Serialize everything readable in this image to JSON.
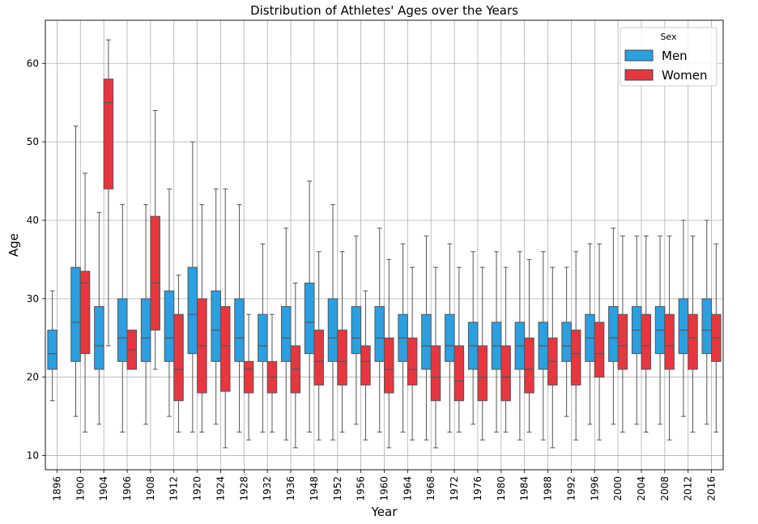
{
  "chart_data": {
    "type": "boxplot",
    "title": "Distribution of Athletes' Ages over the Years",
    "xlabel": "Year",
    "ylabel": "Age",
    "ylim": [
      8.2,
      65.5
    ],
    "yticks": [
      10,
      20,
      30,
      40,
      50,
      60
    ],
    "grid": true,
    "legend": {
      "title": "Sex",
      "placement": "top-right"
    },
    "colors": {
      "Men": "#2b9fe0",
      "Women": "#e8363f"
    },
    "categories": [
      "1896",
      "1900",
      "1904",
      "1906",
      "1908",
      "1912",
      "1920",
      "1924",
      "1928",
      "1932",
      "1936",
      "1948",
      "1952",
      "1956",
      "1960",
      "1964",
      "1968",
      "1972",
      "1976",
      "1980",
      "1984",
      "1988",
      "1992",
      "1996",
      "2000",
      "2004",
      "2008",
      "2012",
      "2016"
    ],
    "series": [
      {
        "name": "Men",
        "boxes": [
          [
            17,
            21,
            23,
            26,
            31
          ],
          [
            15,
            22,
            27,
            34,
            52
          ],
          [
            14,
            21,
            24,
            29,
            41
          ],
          [
            13,
            22,
            25,
            30,
            42
          ],
          [
            14,
            22,
            25,
            30,
            42
          ],
          [
            15,
            22,
            25,
            31,
            44
          ],
          [
            13,
            23,
            28,
            34,
            50
          ],
          [
            14,
            22,
            26,
            31,
            44
          ],
          [
            13,
            22,
            25,
            30,
            42
          ],
          [
            13,
            22,
            24,
            28,
            37
          ],
          [
            12,
            22,
            25,
            29,
            39
          ],
          [
            13,
            23,
            27,
            32,
            45
          ],
          [
            12,
            22,
            25,
            30,
            42
          ],
          [
            14,
            23,
            25,
            29,
            38
          ],
          [
            13,
            22,
            25,
            29,
            39
          ],
          [
            13,
            22,
            25,
            28,
            37
          ],
          [
            12,
            21,
            24,
            28,
            38
          ],
          [
            13,
            22,
            24,
            28,
            37
          ],
          [
            14,
            21,
            24,
            27,
            36
          ],
          [
            13,
            21,
            24,
            27,
            36
          ],
          [
            12,
            21,
            24,
            27,
            36
          ],
          [
            12,
            21,
            24,
            27,
            36
          ],
          [
            15,
            22,
            24,
            27,
            34
          ],
          [
            14,
            22,
            25,
            28,
            37
          ],
          [
            14,
            22,
            25,
            29,
            39
          ],
          [
            14,
            23,
            26,
            29,
            38
          ],
          [
            14,
            23,
            26,
            29,
            38
          ],
          [
            15,
            23,
            26,
            30,
            40
          ],
          [
            14,
            23,
            26,
            30,
            40
          ]
        ]
      },
      {
        "name": "Women",
        "boxes": [
          null,
          [
            13,
            23,
            32,
            33.5,
            46
          ],
          [
            24,
            44,
            55,
            58,
            63
          ],
          [
            21,
            21,
            23.5,
            26,
            26
          ],
          [
            21,
            26,
            32,
            40.5,
            54
          ],
          [
            13,
            17,
            21,
            28,
            33
          ],
          [
            13,
            18,
            24,
            30,
            42
          ],
          [
            11,
            18.2,
            24,
            29,
            44
          ],
          [
            12,
            18,
            21,
            22,
            28
          ],
          [
            13,
            18,
            20,
            22,
            28
          ],
          [
            11,
            18,
            21,
            24,
            32
          ],
          [
            12,
            19,
            22,
            26,
            36
          ],
          [
            13,
            19,
            22,
            26,
            36
          ],
          [
            12,
            19,
            22,
            24,
            31
          ],
          [
            11,
            18,
            21,
            25,
            35
          ],
          [
            12,
            19,
            21,
            25,
            34
          ],
          [
            11,
            17,
            20,
            24,
            34
          ],
          [
            13,
            17,
            19.5,
            24,
            34
          ],
          [
            12,
            17,
            20,
            24,
            34
          ],
          [
            13,
            17,
            20,
            24,
            34
          ],
          [
            13,
            18,
            21,
            25,
            35
          ],
          [
            11,
            19,
            22,
            25,
            34
          ],
          [
            12,
            19,
            23,
            26,
            36
          ],
          [
            12,
            20,
            23,
            27,
            37
          ],
          [
            13,
            21,
            24,
            28,
            38
          ],
          [
            13,
            21,
            24,
            28,
            38
          ],
          [
            12,
            21,
            24,
            28,
            38
          ],
          [
            13,
            21,
            25,
            28,
            38
          ],
          [
            13,
            22,
            25,
            28,
            37
          ]
        ]
      }
    ]
  }
}
